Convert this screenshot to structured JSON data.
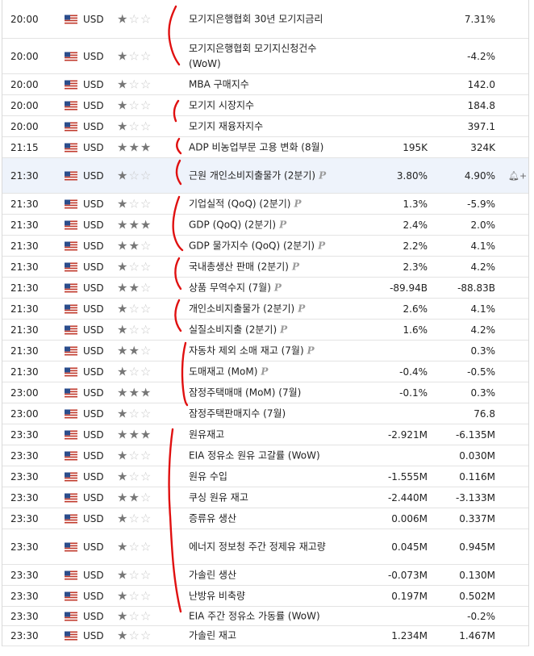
{
  "colors": {
    "annotation": "#e01010",
    "row_highlight": "#eef3fb",
    "star_on": "#777777",
    "star_off": "#c9c9c9"
  },
  "preliminary_flag_icon": "p-icon",
  "rows": [
    {
      "time": "20:00",
      "currency": "USD",
      "stars": 1,
      "event": "모기지은행협회 30년 모기지금리",
      "actual": "",
      "previous": "7.31%",
      "prelim": false,
      "highlight": false,
      "bell": false
    },
    {
      "time": "20:00",
      "currency": "USD",
      "stars": 1,
      "event": "모기지은행협회 모기지신청건수 (WoW)",
      "actual": "",
      "previous": "-4.2%",
      "prelim": false,
      "highlight": false,
      "bell": false
    },
    {
      "time": "20:00",
      "currency": "USD",
      "stars": 1,
      "event": "MBA 구매지수",
      "actual": "",
      "previous": "142.0",
      "prelim": false,
      "highlight": false,
      "bell": false
    },
    {
      "time": "20:00",
      "currency": "USD",
      "stars": 1,
      "event": "모기지 시장지수",
      "actual": "",
      "previous": "184.8",
      "prelim": false,
      "highlight": false,
      "bell": false
    },
    {
      "time": "20:00",
      "currency": "USD",
      "stars": 1,
      "event": "모기지 재융자지수",
      "actual": "",
      "previous": "397.1",
      "prelim": false,
      "highlight": false,
      "bell": false
    },
    {
      "time": "21:15",
      "currency": "USD",
      "stars": 3,
      "event": "ADP 비농업부문 고용 변화 (8월)",
      "actual": "195K",
      "previous": "324K",
      "prelim": false,
      "highlight": false,
      "bell": false
    },
    {
      "time": "21:30",
      "currency": "USD",
      "stars": 1,
      "event": "근원 개인소비지출물가 (2분기)",
      "actual": "3.80%",
      "previous": "4.90%",
      "prelim": true,
      "highlight": true,
      "bell": true
    },
    {
      "time": "21:30",
      "currency": "USD",
      "stars": 1,
      "event": "기업실적 (QoQ) (2분기)",
      "actual": "1.3%",
      "previous": "-5.9%",
      "prelim": true,
      "highlight": false,
      "bell": false
    },
    {
      "time": "21:30",
      "currency": "USD",
      "stars": 3,
      "event": "GDP (QoQ) (2분기)",
      "actual": "2.4%",
      "previous": "2.0%",
      "prelim": true,
      "highlight": false,
      "bell": false
    },
    {
      "time": "21:30",
      "currency": "USD",
      "stars": 2,
      "event": "GDP 물가지수 (QoQ) (2분기)",
      "actual": "2.2%",
      "previous": "4.1%",
      "prelim": true,
      "highlight": false,
      "bell": false
    },
    {
      "time": "21:30",
      "currency": "USD",
      "stars": 1,
      "event": "국내총생산 판매 (2분기)",
      "actual": "2.3%",
      "previous": "4.2%",
      "prelim": true,
      "highlight": false,
      "bell": false
    },
    {
      "time": "21:30",
      "currency": "USD",
      "stars": 2,
      "event": "상품 무역수지 (7월)",
      "actual": "-89.94B",
      "previous": "-88.83B",
      "prelim": true,
      "highlight": false,
      "bell": false
    },
    {
      "time": "21:30",
      "currency": "USD",
      "stars": 1,
      "event": "개인소비지출물가 (2분기)",
      "actual": "2.6%",
      "previous": "4.1%",
      "prelim": true,
      "highlight": false,
      "bell": false
    },
    {
      "time": "21:30",
      "currency": "USD",
      "stars": 1,
      "event": "실질소비지출 (2분기)",
      "actual": "1.6%",
      "previous": "4.2%",
      "prelim": true,
      "highlight": false,
      "bell": false
    },
    {
      "time": "21:30",
      "currency": "USD",
      "stars": 2,
      "event": "자동차 제외 소매 재고 (7월)",
      "actual": "",
      "previous": "0.3%",
      "prelim": true,
      "highlight": false,
      "bell": false
    },
    {
      "time": "21:30",
      "currency": "USD",
      "stars": 1,
      "event": "도매재고 (MoM)",
      "actual": "-0.4%",
      "previous": "-0.5%",
      "prelim": true,
      "highlight": false,
      "bell": false
    },
    {
      "time": "23:00",
      "currency": "USD",
      "stars": 3,
      "event": "잠정주택매매 (MoM) (7월)",
      "actual": "-0.1%",
      "previous": "0.3%",
      "prelim": false,
      "highlight": false,
      "bell": false
    },
    {
      "time": "23:00",
      "currency": "USD",
      "stars": 1,
      "event": "잠정주택판매지수 (7월)",
      "actual": "",
      "previous": "76.8",
      "prelim": false,
      "highlight": false,
      "bell": false
    },
    {
      "time": "23:30",
      "currency": "USD",
      "stars": 3,
      "event": "원유재고",
      "actual": "-2.921M",
      "previous": "-6.135M",
      "prelim": false,
      "highlight": false,
      "bell": false
    },
    {
      "time": "23:30",
      "currency": "USD",
      "stars": 1,
      "event": "EIA 정유소 원유 고갈률 (WoW)",
      "actual": "",
      "previous": "0.030M",
      "prelim": false,
      "highlight": false,
      "bell": false
    },
    {
      "time": "23:30",
      "currency": "USD",
      "stars": 1,
      "event": "원유 수입",
      "actual": "-1.555M",
      "previous": "0.116M",
      "prelim": false,
      "highlight": false,
      "bell": false
    },
    {
      "time": "23:30",
      "currency": "USD",
      "stars": 2,
      "event": "쿠싱 원유 재고",
      "actual": "-2.440M",
      "previous": "-3.133M",
      "prelim": false,
      "highlight": false,
      "bell": false
    },
    {
      "time": "23:30",
      "currency": "USD",
      "stars": 1,
      "event": "증류유 생산",
      "actual": "0.006M",
      "previous": "0.337M",
      "prelim": false,
      "highlight": false,
      "bell": false
    },
    {
      "time": "23:30",
      "currency": "USD",
      "stars": 1,
      "event": "에너지 정보청 주간 정제유 재고량",
      "actual": "0.045M",
      "previous": "0.945M",
      "prelim": false,
      "highlight": false,
      "bell": false
    },
    {
      "time": "23:30",
      "currency": "USD",
      "stars": 1,
      "event": "가솔린 생산",
      "actual": "-0.073M",
      "previous": "0.130M",
      "prelim": false,
      "highlight": false,
      "bell": false
    },
    {
      "time": "23:30",
      "currency": "USD",
      "stars": 1,
      "event": "난방유 비축량",
      "actual": "0.197M",
      "previous": "0.502M",
      "prelim": false,
      "highlight": false,
      "bell": false
    },
    {
      "time": "23:30",
      "currency": "USD",
      "stars": 1,
      "event": "EIA 주간 정유소 가동률 (WoW)",
      "actual": "",
      "previous": "-0.2%",
      "prelim": false,
      "highlight": false,
      "bell": false
    },
    {
      "time": "23:30",
      "currency": "USD",
      "stars": 1,
      "event": "가솔린 재고",
      "actual": "1.234M",
      "previous": "1.467M",
      "prelim": false,
      "highlight": false,
      "bell": false
    }
  ]
}
